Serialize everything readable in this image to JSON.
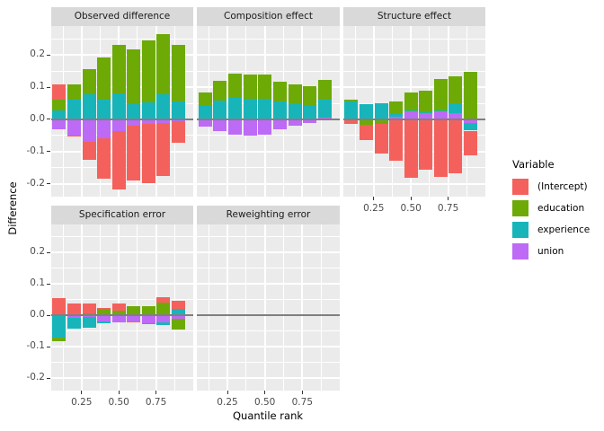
{
  "figure": {
    "y_axis_title": "Difference",
    "x_axis_title": "Quantile rank"
  },
  "legend": {
    "title": "Variable",
    "items": [
      {
        "label": "(Intercept)",
        "color": "#F4615C"
      },
      {
        "label": "education",
        "color": "#6DAA06"
      },
      {
        "label": "experience",
        "color": "#17B5BA"
      },
      {
        "label": "union",
        "color": "#BD6AF6"
      }
    ]
  },
  "style_colors": {
    "panel_bg": "#EBEBEB",
    "strip_bg": "#D9D9D9",
    "gridline": "#FFFFFF",
    "zero_line": "#7F7F7F",
    "tick_text": "#4D4D4D"
  },
  "chart_data": {
    "type": "bar",
    "stacked": true,
    "title": "",
    "xlabel": "Quantile rank",
    "ylabel": "Difference",
    "x": [
      0.1,
      0.2,
      0.3,
      0.4,
      0.5,
      0.6,
      0.7,
      0.8,
      0.9
    ],
    "xlim": [
      0.046,
      1.0
    ],
    "ylim": [
      -0.24,
      0.29
    ],
    "bar_width": 0.09,
    "x_tick_values": [
      0.25,
      0.5,
      0.75
    ],
    "x_tick_labels": [
      "0.25",
      "0.50",
      "0.75"
    ],
    "x_minor_values": [
      0.125,
      0.375,
      0.625,
      0.875
    ],
    "y_tick_values": [
      0.2,
      0.1,
      0.0,
      -0.1,
      -0.2
    ],
    "y_tick_labels": [
      "0.2",
      "0.1",
      "0.0",
      "-0.1",
      "-0.2"
    ],
    "y_minor_values": [
      0.25,
      0.15,
      0.05,
      -0.05,
      -0.15
    ],
    "stack_order": [
      "union",
      "experience",
      "education",
      "(Intercept)"
    ],
    "legend_position": "right",
    "facets": [
      {
        "title": "Observed difference",
        "series": {
          "(Intercept)": [
            0.05,
            -0.002,
            -0.055,
            -0.127,
            -0.183,
            -0.171,
            -0.184,
            -0.165,
            -0.067
          ],
          "education": [
            0.032,
            0.048,
            0.078,
            0.133,
            0.151,
            0.171,
            0.193,
            0.187,
            0.176
          ],
          "experience": [
            0.028,
            0.062,
            0.077,
            0.06,
            0.081,
            0.047,
            0.052,
            0.078,
            0.056
          ],
          "union": [
            -0.03,
            -0.05,
            -0.07,
            -0.058,
            -0.035,
            -0.019,
            -0.014,
            -0.01,
            -0.005
          ]
        }
      },
      {
        "title": "Composition effect",
        "series": {
          "(Intercept)": [
            0,
            0,
            0,
            0,
            0,
            0,
            0,
            0,
            0
          ],
          "education": [
            0.043,
            0.063,
            0.075,
            0.073,
            0.075,
            0.062,
            0.063,
            0.06,
            0.06
          ],
          "experience": [
            0.041,
            0.058,
            0.066,
            0.065,
            0.063,
            0.055,
            0.047,
            0.042,
            0.056
          ],
          "union": [
            -0.022,
            -0.037,
            -0.047,
            -0.05,
            -0.047,
            -0.03,
            -0.02,
            -0.01,
            0.006
          ]
        }
      },
      {
        "title": "Structure effect",
        "series": {
          "(Intercept)": [
            -0.011,
            -0.049,
            -0.091,
            -0.128,
            -0.182,
            -0.155,
            -0.178,
            -0.168,
            -0.078
          ],
          "education": [
            0.006,
            -0.012,
            -0.01,
            0.038,
            0.055,
            0.065,
            0.096,
            0.082,
            0.148
          ],
          "experience": [
            0.056,
            0.048,
            0.05,
            0.01,
            0.003,
            0.002,
            0.002,
            0.031,
            -0.024
          ],
          "union": [
            -0.002,
            -0.004,
            -0.004,
            0.007,
            0.026,
            0.021,
            0.027,
            0.02,
            -0.011
          ]
        }
      },
      {
        "title": "Specification error",
        "series": {
          "(Intercept)": [
            0.056,
            0.038,
            0.032,
            0.003,
            0.022,
            -0.003,
            0.0,
            0.017,
            0.024
          ],
          "education": [
            -0.012,
            0.0,
            0.006,
            0.022,
            0.012,
            0.028,
            0.03,
            0.04,
            -0.034
          ],
          "experience": [
            -0.068,
            -0.034,
            -0.034,
            -0.005,
            0.004,
            0.0,
            -0.002,
            -0.007,
            0.022
          ],
          "union": [
            -0.002,
            -0.008,
            -0.006,
            -0.02,
            -0.022,
            -0.02,
            -0.025,
            -0.023,
            -0.012
          ]
        }
      },
      {
        "title": "Reweighting error",
        "series": {
          "(Intercept)": [
            0,
            0,
            0,
            0,
            0,
            0,
            0,
            0,
            0
          ],
          "education": [
            0,
            0,
            0,
            0,
            0,
            0,
            0,
            0,
            0
          ],
          "experience": [
            0,
            0,
            0,
            0,
            0,
            0,
            0,
            0,
            0
          ],
          "union": [
            0,
            0,
            0,
            0,
            0,
            0,
            0,
            0,
            0
          ]
        }
      }
    ]
  }
}
